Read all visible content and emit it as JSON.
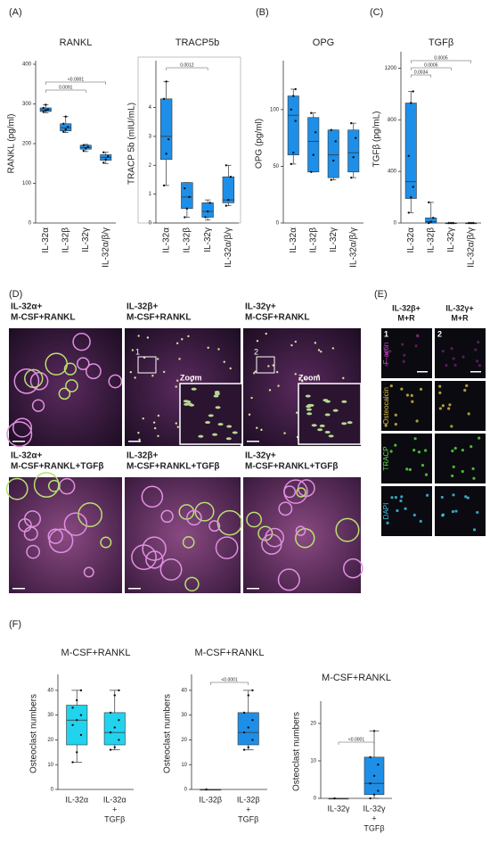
{
  "panel_labels": [
    "(A)",
    "(B)",
    "(C)",
    "(F)"
  ],
  "chart_data": [
    {
      "type": "box",
      "title": "RANKL",
      "y_label": "RANKL (pg/ml)",
      "categories": [
        "IL-32α",
        "IL-32β",
        "IL-32γ",
        "IL-32α/β/γ"
      ],
      "color": "#1e8fe8",
      "ylim": [
        0,
        400
      ],
      "yticks": [
        0,
        100,
        200,
        300,
        400
      ],
      "boxes": [
        {
          "min": 278,
          "q1": 281,
          "median": 285,
          "q3": 290,
          "max": 298,
          "points": [
            280,
            284,
            286,
            290,
            298
          ]
        },
        {
          "min": 228,
          "q1": 232,
          "median": 240,
          "q3": 250,
          "max": 268,
          "points": [
            230,
            236,
            242,
            250,
            268
          ]
        },
        {
          "min": 180,
          "q1": 186,
          "median": 190,
          "q3": 196,
          "max": 198,
          "points": [
            182,
            188,
            192,
            196
          ]
        },
        {
          "min": 150,
          "q1": 158,
          "median": 165,
          "q3": 172,
          "max": 178,
          "points": [
            152,
            160,
            168,
            178
          ]
        }
      ],
      "brackets": [
        {
          "pair": [
            0,
            3
          ],
          "label": "<0.0001"
        },
        {
          "pair": [
            0,
            2
          ],
          "label": "0.0091"
        }
      ]
    },
    {
      "type": "box",
      "title": "TRACP5b",
      "y_label": "TRACP 5b (mIU/mL)",
      "categories": [
        "IL-32α",
        "IL-32β",
        "IL-32γ",
        "IL-32α/β/γ"
      ],
      "color": "#1e8fe8",
      "ylim": [
        0,
        5.5
      ],
      "yticks": [
        0,
        1,
        2,
        3,
        4
      ],
      "frame": true,
      "boxes": [
        {
          "min": 1.3,
          "q1": 2.2,
          "median": 3.0,
          "q3": 4.3,
          "max": 4.9,
          "points": [
            1.3,
            2.4,
            2.9,
            4.3,
            4.9
          ]
        },
        {
          "min": 0.2,
          "q1": 0.5,
          "median": 0.9,
          "q3": 1.4,
          "max": 1.4,
          "points": [
            0.2,
            0.5,
            0.9,
            1.2
          ]
        },
        {
          "min": 0.1,
          "q1": 0.2,
          "median": 0.4,
          "q3": 0.7,
          "max": 0.8,
          "points": [
            0.2,
            0.4,
            0.7
          ]
        },
        {
          "min": 0.6,
          "q1": 0.7,
          "median": 0.8,
          "q3": 1.6,
          "max": 2.0,
          "points": [
            0.6,
            0.8,
            1.6,
            2.0
          ]
        }
      ],
      "brackets": [
        {
          "pair": [
            0,
            2
          ],
          "label": "0.0012"
        }
      ]
    },
    {
      "type": "box",
      "title": "OPG",
      "y_label": "OPG (pg/ml)",
      "categories": [
        "IL-32α",
        "IL-32β",
        "IL-32γ",
        "IL-32α/β/γ"
      ],
      "color": "#1e8fe8",
      "ylim": [
        0,
        140
      ],
      "yticks": [
        0,
        50,
        100
      ],
      "boxes": [
        {
          "min": 52,
          "q1": 60,
          "median": 95,
          "q3": 112,
          "max": 118,
          "points": [
            52,
            62,
            90,
            100,
            112,
            118
          ]
        },
        {
          "min": 45,
          "q1": 45,
          "median": 72,
          "q3": 93,
          "max": 97,
          "points": [
            45,
            60,
            80,
            97
          ]
        },
        {
          "min": 38,
          "q1": 40,
          "median": 60,
          "q3": 82,
          "max": 82,
          "points": [
            38,
            55,
            72,
            82
          ]
        },
        {
          "min": 40,
          "q1": 45,
          "median": 62,
          "q3": 82,
          "max": 88,
          "points": [
            40,
            58,
            75,
            88
          ]
        }
      ],
      "brackets": []
    },
    {
      "type": "box",
      "title": "TGFβ",
      "y_label": "TGFβ (pg/mL)",
      "categories": [
        "IL-32α",
        "IL-32β",
        "IL-32γ",
        "IL-32α/β/γ"
      ],
      "color": "#1e8fe8",
      "ylim": [
        0,
        1300
      ],
      "yticks": [
        0,
        400,
        800,
        1200
      ],
      "boxes": [
        {
          "min": 80,
          "q1": 190,
          "median": 320,
          "q3": 930,
          "max": 1020,
          "points": [
            80,
            200,
            280,
            520,
            930,
            1020
          ]
        },
        {
          "min": 0,
          "q1": 0,
          "median": 10,
          "q3": 40,
          "max": 160,
          "points": [
            0,
            10,
            40,
            160
          ]
        },
        {
          "min": 0,
          "q1": 0,
          "median": 0,
          "q3": 0,
          "max": 0,
          "points": [
            0,
            0,
            0
          ]
        },
        {
          "min": 0,
          "q1": 0,
          "median": 0,
          "q3": 0,
          "max": 0,
          "points": [
            0,
            0,
            0
          ]
        }
      ],
      "brackets": [
        {
          "pair": [
            0,
            3
          ],
          "label": "0.0005"
        },
        {
          "pair": [
            0,
            2
          ],
          "label": "0.0005"
        },
        {
          "pair": [
            0,
            1
          ],
          "label": "0.0034"
        }
      ]
    },
    {
      "type": "box",
      "title": "M-CSF+RANKL",
      "y_label": "Osteoclast numbers",
      "categories": [
        [
          "IL-32α"
        ],
        [
          "IL-32α",
          "+",
          "TGFβ"
        ]
      ],
      "color": "#22d3ee",
      "ylim": [
        0,
        45
      ],
      "yticks": [
        0,
        10,
        20,
        30,
        40
      ],
      "boxes": [
        {
          "min": 11,
          "q1": 18,
          "median": 28,
          "q3": 34,
          "max": 40,
          "points": [
            11,
            15,
            22,
            26,
            28,
            30,
            33,
            36,
            40
          ]
        },
        {
          "min": 16,
          "q1": 18,
          "median": 23,
          "q3": 31,
          "max": 40,
          "points": [
            16,
            17,
            20,
            23,
            25,
            28,
            31,
            38,
            40
          ]
        }
      ],
      "brackets": []
    },
    {
      "type": "box",
      "title": "M-CSF+RANKL",
      "y_label": "Osteoclast numbers",
      "categories": [
        [
          "IL-32β"
        ],
        [
          "IL-32β",
          "+",
          "TGFβ"
        ]
      ],
      "color": "#22d3ee",
      "ylim": [
        0,
        45
      ],
      "yticks": [
        0,
        10,
        20,
        30,
        40
      ],
      "boxes": [
        {
          "min": 0,
          "q1": 0,
          "median": 0,
          "q3": 0,
          "max": 0,
          "points": [
            0
          ]
        },
        {
          "min": 16,
          "q1": 18,
          "median": 23,
          "q3": 31,
          "max": 40,
          "points": [
            16,
            17,
            20,
            23,
            25,
            28,
            31,
            38,
            40
          ]
        }
      ],
      "brackets": [
        {
          "pair": [
            0,
            1
          ],
          "label": "<0.0001"
        }
      ]
    },
    {
      "type": "box",
      "title": "M-CSF+RANKL",
      "y_label": "Osteoclast numbers",
      "categories": [
        [
          "IL-32γ"
        ],
        [
          "IL-32γ",
          "+",
          "TGFβ"
        ]
      ],
      "color": "#1e8fe8",
      "ylim": [
        0,
        25
      ],
      "yticks": [
        0,
        10,
        20
      ],
      "boxes": [
        {
          "min": 0,
          "q1": 0,
          "median": 0,
          "q3": 0,
          "max": 0,
          "points": [
            0
          ]
        },
        {
          "min": 0,
          "q1": 1,
          "median": 4,
          "q3": 11,
          "max": 18,
          "points": [
            0,
            1,
            2,
            4,
            6,
            9,
            11,
            18
          ]
        }
      ],
      "brackets": [
        {
          "pair": [
            0,
            1
          ],
          "label": "<0.0001"
        }
      ]
    }
  ],
  "micrographs": {
    "label": "(D)",
    "zoom": "Zoom",
    "insets": [
      "1",
      "2"
    ],
    "panels": [
      [
        "IL-32α+",
        "M-CSF+RANKL"
      ],
      [
        "IL-32β+",
        "M-CSF+RANKL"
      ],
      [
        "IL-32γ+",
        "M-CSF+RANKL"
      ],
      [
        "IL-32α+",
        "M-CSF+RANKL+TGFβ"
      ],
      [
        "IL-32β+",
        "M-CSF+RANKL+TGFβ"
      ],
      [
        "IL-32γ+",
        "M-CSF+RANKL+TGFβ"
      ]
    ]
  },
  "stains": {
    "label": "(E)",
    "columns": [
      [
        "IL-32β+",
        "M+R"
      ],
      [
        "IL-32γ+",
        "M+R"
      ]
    ],
    "numbers": [
      "1",
      "2"
    ],
    "rows": [
      "F-actin",
      "Osteocalcin",
      "TRACP",
      "DAPI"
    ]
  }
}
